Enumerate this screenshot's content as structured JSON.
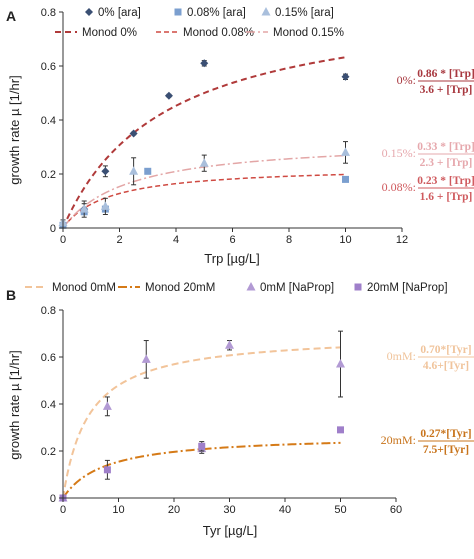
{
  "chart_data": [
    {
      "type": "scatter",
      "panel_label": "A",
      "xlabel": "Trp [µg/L]",
      "ylabel": "growth rate µ [1/hr]",
      "xlim": [
        0,
        12
      ],
      "ylim": [
        0,
        0.8
      ],
      "xticks": [
        "0",
        "2",
        "4",
        "6",
        "8",
        "10",
        "12"
      ],
      "yticks": [
        "0",
        "0.2",
        "0.4",
        "0.6",
        "0.8"
      ],
      "grid": false,
      "legend_position": "top",
      "series": [
        {
          "name": "0% [ara]",
          "marker": "diamond",
          "color": "#3a4f73",
          "points": [
            {
              "x": 0,
              "y": 0.01,
              "err": 0.0
            },
            {
              "x": 0.75,
              "y": 0.07,
              "err": 0.02
            },
            {
              "x": 1.5,
              "y": 0.21,
              "err": 0.02
            },
            {
              "x": 2.5,
              "y": 0.35,
              "err": 0.005
            },
            {
              "x": 3.75,
              "y": 0.49,
              "err": 0.005
            },
            {
              "x": 5,
              "y": 0.61,
              "err": 0.01
            },
            {
              "x": 10,
              "y": 0.56,
              "err": 0.01
            }
          ]
        },
        {
          "name": "0.08% [ara]",
          "marker": "square",
          "color": "#7b9fcf",
          "points": [
            {
              "x": 0,
              "y": 0.01,
              "err": 0.0
            },
            {
              "x": 0.75,
              "y": 0.06,
              "err": 0.01
            },
            {
              "x": 1.5,
              "y": 0.07,
              "err": 0.01
            },
            {
              "x": 3,
              "y": 0.21,
              "err": 0.0
            },
            {
              "x": 10,
              "y": 0.18,
              "err": 0.0
            }
          ]
        },
        {
          "name": "0.15% [ara]",
          "marker": "triangle",
          "color": "#a9bfdc",
          "points": [
            {
              "x": 0,
              "y": 0.02,
              "err": 0.01
            },
            {
              "x": 0.75,
              "y": 0.07,
              "err": 0.03
            },
            {
              "x": 1.5,
              "y": 0.08,
              "err": 0.03
            },
            {
              "x": 2.5,
              "y": 0.21,
              "err": 0.05
            },
            {
              "x": 5,
              "y": 0.24,
              "err": 0.03
            },
            {
              "x": 10,
              "y": 0.28,
              "err": 0.04
            }
          ]
        }
      ],
      "fits": [
        {
          "name": "Monod 0%",
          "mu_max": 0.86,
          "k": 3.6,
          "color": "#b03a3a",
          "dash": "6,4",
          "width": 2
        },
        {
          "name": "Monod 0.08%",
          "mu_max": 0.23,
          "k": 1.6,
          "color": "#cf4a42",
          "dash": "5,3",
          "width": 1.5
        },
        {
          "name": "Monod 0.15%",
          "mu_max": 0.33,
          "k": 2.3,
          "color": "#e3a6a6",
          "dash": "9,3,2,3",
          "width": 1.5
        }
      ],
      "annotations": [
        {
          "prefix": "0%:",
          "numerator": "0.86 * [Trp]",
          "denominator": "3.6 + [Trp]",
          "color": "#a8383f"
        },
        {
          "prefix": "0.15%:",
          "numerator": "0.33 * [Trp]",
          "denominator": "2.3 + [Trp]",
          "color": "#e6a8ad"
        },
        {
          "prefix": "0.08%:",
          "numerator": "0.23 * [Trp]",
          "denominator": "1.6 + [Trp]",
          "color": "#cf5a5e"
        }
      ]
    },
    {
      "type": "scatter",
      "panel_label": "B",
      "xlabel": "Tyr [µg/L]",
      "ylabel": "growth rate µ [1/hr]",
      "xlim": [
        0,
        60
      ],
      "ylim": [
        0,
        0.8
      ],
      "xticks": [
        "0",
        "10",
        "20",
        "30",
        "40",
        "50",
        "60"
      ],
      "yticks": [
        "0",
        "0.2",
        "0.4",
        "0.6",
        "0.8"
      ],
      "grid": false,
      "legend_position": "top",
      "series": [
        {
          "name": "0mM [NaProp]",
          "marker": "triangle",
          "color": "#b29ad4",
          "points": [
            {
              "x": 0,
              "y": 0.0,
              "err": 0.0
            },
            {
              "x": 8,
              "y": 0.39,
              "err": 0.04
            },
            {
              "x": 15,
              "y": 0.59,
              "err": 0.08
            },
            {
              "x": 25,
              "y": 0.21,
              "err": 0.02
            },
            {
              "x": 30,
              "y": 0.65,
              "err": 0.02
            },
            {
              "x": 50,
              "y": 0.57,
              "err": 0.14
            }
          ]
        },
        {
          "name": "20mM [NaProp]",
          "marker": "square",
          "color": "#9f7fca",
          "points": [
            {
              "x": 0,
              "y": 0.0,
              "err": 0.0
            },
            {
              "x": 8,
              "y": 0.12,
              "err": 0.04
            },
            {
              "x": 25,
              "y": 0.22,
              "err": 0.02
            },
            {
              "x": 50,
              "y": 0.29,
              "err": 0.01
            }
          ]
        }
      ],
      "fits": [
        {
          "name": "Monod 0mM",
          "mu_max": 0.7,
          "k": 4.6,
          "color": "#f2c49a",
          "dash": "7,4",
          "width": 2
        },
        {
          "name": "Monod 20mM",
          "mu_max": 0.27,
          "k": 7.5,
          "color": "#d57a17",
          "dash": "9,3,2,3",
          "width": 2
        }
      ],
      "annotations": [
        {
          "prefix": "0mM:",
          "numerator": "0.70*[Tyr]",
          "denominator": "4.6+[Tyr]",
          "color": "#f0c49c"
        },
        {
          "prefix": "20mM:",
          "numerator": "0.27*[Tyr]",
          "denominator": "7.5+[Tyr]",
          "color": "#c8741c"
        }
      ]
    }
  ]
}
